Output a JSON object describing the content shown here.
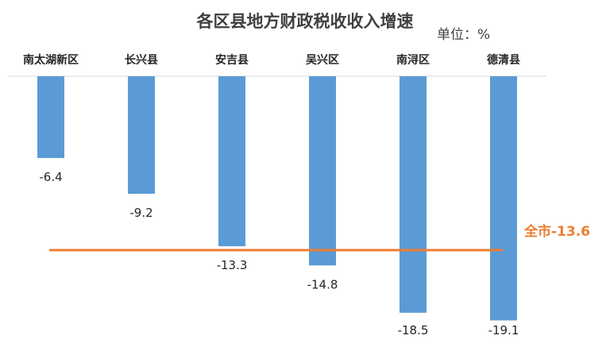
{
  "chart_data": {
    "type": "bar",
    "title": "各区县地方财政税收收入增速",
    "unit_label": "单位：%",
    "categories": [
      "南太湖新区",
      "长兴县",
      "安吉县",
      "吴兴区",
      "南浔区",
      "德清县"
    ],
    "values": [
      -6.4,
      -9.2,
      -13.3,
      -14.8,
      -18.5,
      -19.1
    ],
    "value_labels": [
      "-6.4",
      "-9.2",
      "-13.3",
      "-14.8",
      "-18.5",
      "-19.1"
    ],
    "ylim": [
      -20,
      0
    ],
    "grid": false,
    "legend": "none",
    "reference_line": {
      "value": -13.6,
      "label": "全市-13.6"
    },
    "colors": {
      "bar": "#5b9bd5",
      "reference": "#ed7d31",
      "axis": "#d9d9d9"
    }
  }
}
